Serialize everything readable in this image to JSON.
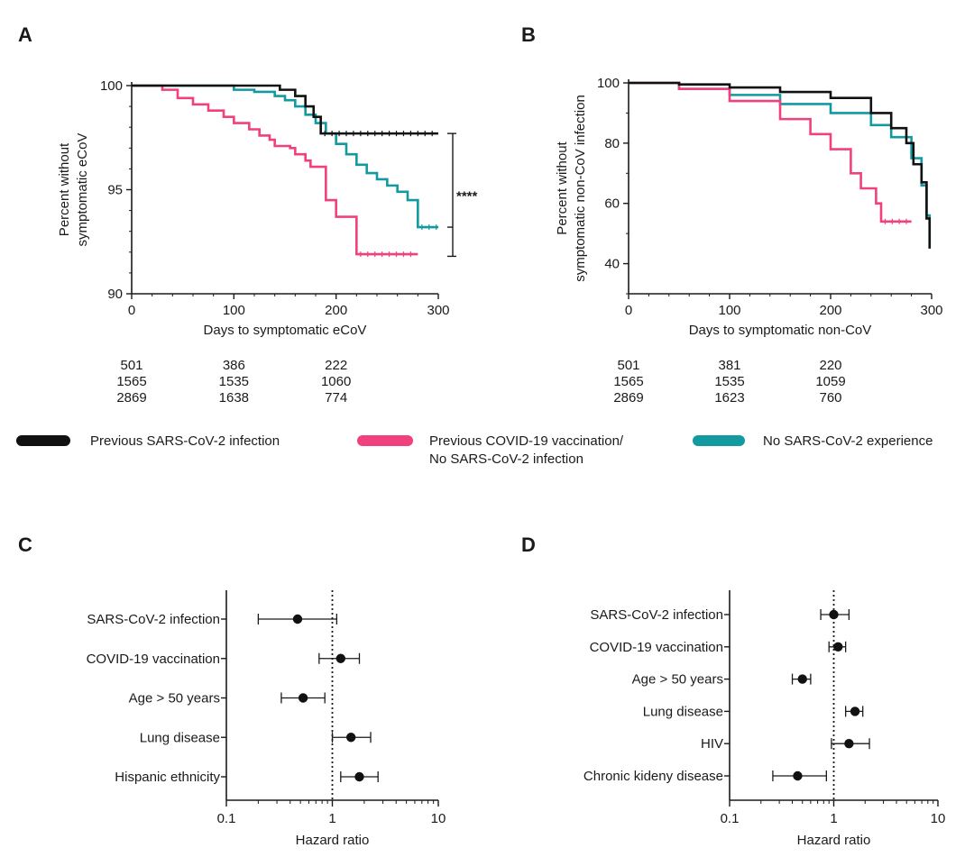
{
  "colors": {
    "black": "#111111",
    "pink": "#f0407e",
    "teal": "#129aa0",
    "axis": "#1a1a1a"
  },
  "panels": {
    "A": {
      "letter": "A"
    },
    "B": {
      "letter": "B"
    },
    "C": {
      "letter": "C"
    },
    "D": {
      "letter": "D"
    }
  },
  "legend": [
    {
      "label": "Previous SARS-CoV-2 infection",
      "color": "#111111"
    },
    {
      "label": "Previous COVID-19 vaccination/",
      "label2": "No SARS-CoV-2 infection",
      "color": "#f0407e"
    },
    {
      "label": "No SARS-CoV-2 experience",
      "color": "#129aa0"
    }
  ],
  "chart_data": [
    {
      "id": "A",
      "type": "line",
      "title": "",
      "xlabel": "Days to symptomatic eCoV",
      "ylabel": [
        "Percent without",
        "symptomatic eCoV"
      ],
      "xlim": [
        0,
        300
      ],
      "ylim": [
        90,
        100
      ],
      "xticks": [
        0,
        100,
        200,
        300
      ],
      "yticks": [
        90,
        95,
        100
      ],
      "significance": "****",
      "series": [
        {
          "name": "Previous SARS-CoV-2 infection",
          "color": "#111111",
          "x": [
            0,
            130,
            145,
            160,
            170,
            178,
            185,
            300
          ],
          "y": [
            100,
            100,
            99.8,
            99.5,
            99.0,
            98.5,
            97.7,
            97.7
          ]
        },
        {
          "name": "Previous COVID-19 vaccination/No SARS-CoV-2 infection",
          "color": "#f0407e",
          "x": [
            0,
            30,
            45,
            60,
            75,
            90,
            100,
            115,
            125,
            135,
            140,
            155,
            160,
            170,
            175,
            185,
            190,
            200,
            220,
            280
          ],
          "y": [
            100,
            99.8,
            99.4,
            99.1,
            98.8,
            98.5,
            98.2,
            97.9,
            97.6,
            97.4,
            97.1,
            97.0,
            96.7,
            96.4,
            96.1,
            96.1,
            94.5,
            93.7,
            91.9,
            91.9
          ]
        },
        {
          "name": "No SARS-CoV-2 experience",
          "color": "#129aa0",
          "x": [
            0,
            60,
            100,
            120,
            140,
            150,
            160,
            170,
            180,
            190,
            200,
            210,
            220,
            230,
            240,
            250,
            260,
            270,
            280,
            300
          ],
          "y": [
            100,
            100,
            99.8,
            99.7,
            99.5,
            99.3,
            99.0,
            98.6,
            98.2,
            97.7,
            97.2,
            96.7,
            96.2,
            95.8,
            95.5,
            95.2,
            94.9,
            94.5,
            93.2,
            93.2
          ]
        }
      ],
      "risk_table": [
        {
          "values": [
            "501",
            "386",
            "222"
          ],
          "color": "#111111"
        },
        {
          "values": [
            "1565",
            "1535",
            "1060"
          ],
          "color": "#f0407e"
        },
        {
          "values": [
            "2869",
            "1638",
            "774"
          ],
          "color": "#129aa0"
        }
      ]
    },
    {
      "id": "B",
      "type": "line",
      "title": "",
      "xlabel": "Days to symptomatic non-CoV",
      "ylabel": [
        "Percent without",
        "symptomatic non-CoV infection"
      ],
      "xlim": [
        0,
        300
      ],
      "ylim": [
        30,
        100
      ],
      "xticks": [
        0,
        100,
        200,
        300
      ],
      "yticks": [
        40,
        60,
        80,
        100
      ],
      "series": [
        {
          "name": "Previous SARS-CoV-2 infection",
          "color": "#111111",
          "x": [
            0,
            50,
            100,
            150,
            200,
            240,
            260,
            275,
            282,
            290,
            295,
            298
          ],
          "y": [
            100,
            99.5,
            98.5,
            97,
            95,
            90,
            85,
            80,
            73,
            67,
            55,
            45
          ]
        },
        {
          "name": "Previous COVID-19 vaccination/No SARS-CoV-2 infection",
          "color": "#f0407e",
          "x": [
            0,
            50,
            100,
            150,
            180,
            200,
            220,
            230,
            245,
            250,
            280
          ],
          "y": [
            100,
            98,
            94,
            88,
            83,
            78,
            70,
            65,
            60,
            54,
            54
          ]
        },
        {
          "name": "No SARS-CoV-2 experience",
          "color": "#129aa0",
          "x": [
            0,
            50,
            100,
            150,
            200,
            240,
            260,
            280,
            290,
            295,
            298
          ],
          "y": [
            100,
            98,
            96,
            93,
            90,
            86,
            82,
            75,
            66,
            56,
            46
          ]
        }
      ],
      "risk_table": [
        {
          "values": [
            "501",
            "381",
            "220"
          ],
          "color": "#111111"
        },
        {
          "values": [
            "1565",
            "1535",
            "1059"
          ],
          "color": "#f0407e"
        },
        {
          "values": [
            "2869",
            "1623",
            "760"
          ],
          "color": "#129aa0"
        }
      ]
    },
    {
      "id": "C",
      "type": "scatter",
      "xscale": "log",
      "xlim": [
        0.1,
        10
      ],
      "xticks": [
        "0.1",
        "1",
        "10"
      ],
      "xlabel": "Hazard ratio",
      "reference_line": 1,
      "rows": [
        {
          "label": "SARS-CoV-2 infection",
          "hr": 0.47,
          "lo": 0.2,
          "hi": 1.1
        },
        {
          "label": "COVID-19 vaccination",
          "hr": 1.2,
          "lo": 0.75,
          "hi": 1.8
        },
        {
          "label": "Age > 50 years",
          "hr": 0.53,
          "lo": 0.33,
          "hi": 0.85
        },
        {
          "label": "Lung disease",
          "hr": 1.5,
          "lo": 1.0,
          "hi": 2.3
        },
        {
          "label": "Hispanic ethnicity",
          "hr": 1.8,
          "lo": 1.2,
          "hi": 2.7
        }
      ]
    },
    {
      "id": "D",
      "type": "scatter",
      "xscale": "log",
      "xlim": [
        0.1,
        10
      ],
      "xticks": [
        "0.1",
        "1",
        "10"
      ],
      "xlabel": "Hazard ratio",
      "reference_line": 1,
      "rows": [
        {
          "label": "SARS-CoV-2 infection",
          "hr": 1.0,
          "lo": 0.75,
          "hi": 1.4
        },
        {
          "label": "COVID-19 vaccination",
          "hr": 1.1,
          "lo": 0.9,
          "hi": 1.3
        },
        {
          "label": "Age > 50 years",
          "hr": 0.5,
          "lo": 0.4,
          "hi": 0.6
        },
        {
          "label": "Lung disease",
          "hr": 1.6,
          "lo": 1.3,
          "hi": 1.9
        },
        {
          "label": "HIV",
          "hr": 1.4,
          "lo": 0.95,
          "hi": 2.2
        },
        {
          "label": "Chronic kideny disease",
          "hr": 0.45,
          "lo": 0.26,
          "hi": 0.85
        }
      ]
    }
  ]
}
